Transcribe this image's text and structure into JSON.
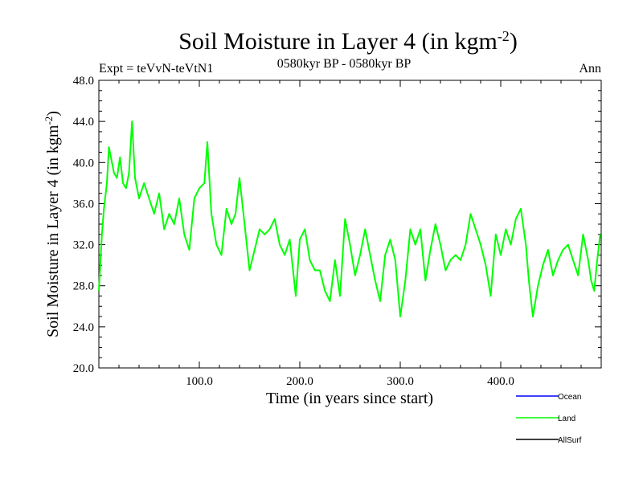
{
  "header": {
    "title_main": "Soil Moisture in Layer 4 (in kgm",
    "title_sup": "-2",
    "title_end": ")",
    "expt": "Expt = teVvN-teVtN1",
    "period": "0580kyr BP - 0580kyr BP",
    "season": "Ann"
  },
  "chart_data": {
    "type": "line",
    "xlabel": "Time (in years since start)",
    "ylabel_main": "Soil Moisture in Layer 4 (in kgm",
    "ylabel_sup": "-2",
    "ylabel_end": ")",
    "xlim": [
      0,
      500
    ],
    "ylim": [
      20,
      48
    ],
    "x_ticks": [
      100,
      200,
      300,
      400
    ],
    "x_tick_labels": [
      "100.0",
      "200.0",
      "300.0",
      "400.0"
    ],
    "y_ticks": [
      20,
      24,
      28,
      32,
      36,
      40,
      44,
      48
    ],
    "y_tick_labels": [
      "20.0",
      "24.0",
      "28.0",
      "32.0",
      "36.0",
      "40.0",
      "44.0",
      "48.0"
    ],
    "legend_position": "bottom-right",
    "series": [
      {
        "name": "Ocean",
        "color": "#0000ff",
        "x": [],
        "y": []
      },
      {
        "name": "Land",
        "color": "#00ff00",
        "x": [
          0,
          3,
          5,
          8,
          10,
          13,
          15,
          18,
          21,
          24,
          27,
          30,
          33,
          36,
          40,
          45,
          50,
          55,
          60,
          65,
          70,
          75,
          80,
          85,
          90,
          95,
          100,
          105,
          108,
          112,
          117,
          122,
          127,
          132,
          136,
          140,
          145,
          150,
          155,
          160,
          165,
          170,
          175,
          180,
          185,
          190,
          196,
          200,
          205,
          210,
          215,
          220,
          225,
          230,
          235,
          240,
          245,
          250,
          255,
          260,
          265,
          270,
          275,
          280,
          285,
          290,
          295,
          300,
          305,
          310,
          315,
          320,
          325,
          330,
          335,
          340,
          345,
          350,
          355,
          360,
          365,
          370,
          375,
          380,
          385,
          390,
          395,
          400,
          405,
          410,
          415,
          420,
          425,
          428,
          432,
          437,
          442,
          447,
          452,
          457,
          462,
          467,
          472,
          477,
          482,
          487,
          490,
          493,
          496,
          499
        ],
        "y": [
          27.5,
          33.0,
          35.5,
          38.0,
          41.5,
          40.0,
          39.0,
          38.5,
          40.5,
          38.0,
          37.5,
          39.0,
          44.0,
          38.5,
          36.5,
          38.0,
          36.5,
          35.0,
          37.0,
          33.5,
          35.0,
          34.0,
          36.5,
          33.0,
          31.5,
          36.5,
          37.5,
          38.0,
          42.0,
          35.0,
          32.0,
          31.0,
          35.5,
          34.0,
          35.0,
          38.5,
          34.0,
          29.5,
          31.5,
          33.5,
          33.0,
          33.5,
          34.5,
          32.0,
          31.0,
          32.5,
          27.0,
          32.5,
          33.5,
          30.5,
          29.5,
          29.5,
          27.5,
          26.5,
          30.5,
          27.0,
          34.5,
          32.0,
          29.0,
          31.0,
          33.5,
          31.0,
          28.5,
          26.5,
          31.0,
          32.5,
          30.5,
          25.0,
          28.5,
          33.5,
          32.0,
          33.5,
          28.5,
          31.5,
          34.0,
          32.0,
          29.5,
          30.5,
          31.0,
          30.5,
          32.0,
          35.0,
          33.5,
          32.0,
          30.0,
          27.0,
          33.0,
          31.0,
          33.5,
          32.0,
          34.5,
          35.5,
          32.0,
          28.5,
          25.0,
          28.0,
          30.0,
          31.5,
          29.0,
          30.5,
          31.5,
          32.0,
          30.5,
          29.0,
          33.0,
          30.5,
          28.5,
          27.5,
          30.5,
          33.0
        ]
      },
      {
        "name": "AllSurf",
        "color": "#000000",
        "x": [],
        "y": []
      }
    ]
  }
}
